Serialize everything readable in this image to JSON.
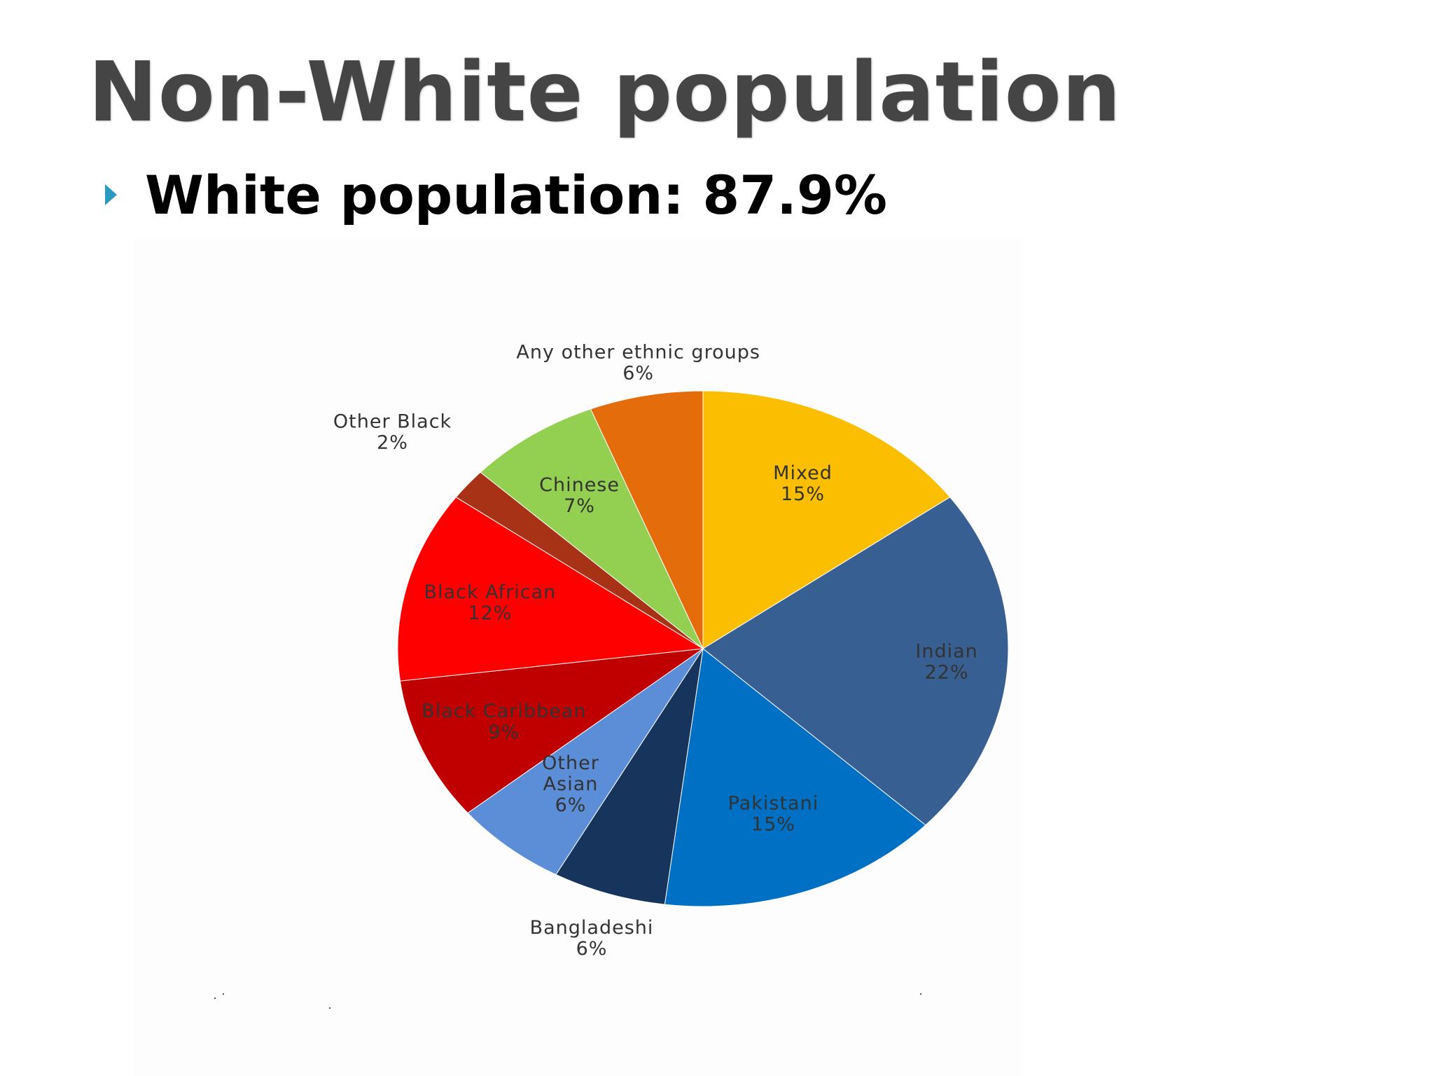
{
  "slide": {
    "title": "Non-White population",
    "bullet_text": "White population: 87.9%"
  },
  "chart_data": {
    "type": "pie",
    "title": "",
    "start_angle_deg": 0,
    "direction": "clockwise",
    "slices": [
      {
        "label": "Mixed",
        "value": 15,
        "value_label": "15%",
        "color": "#fbbe00",
        "label_color": "#333333"
      },
      {
        "label": "Indian",
        "value": 22,
        "value_label": "22%",
        "color": "#385f91",
        "label_color": "#333333"
      },
      {
        "label": "Pakistani",
        "value": 15,
        "value_label": "15%",
        "color": "#0070c4",
        "label_color": "#333333"
      },
      {
        "label": "Bangladeshi",
        "value": 6,
        "value_label": "6%",
        "color": "#17345c",
        "label_color": "#333333"
      },
      {
        "label": "Other Asian",
        "value": 6,
        "value_label": "6%",
        "color": "#5b8ed6",
        "label_color": "#333333"
      },
      {
        "label": "Black Caribbean",
        "value": 9,
        "value_label": "9%",
        "color": "#c00000",
        "label_color": "#333333"
      },
      {
        "label": "Black African",
        "value": 12,
        "value_label": "12%",
        "color": "#ff0000",
        "label_color": "#333333"
      },
      {
        "label": "Other Black",
        "value": 2,
        "value_label": "2%",
        "color": "#a73216",
        "label_color": "#333333"
      },
      {
        "label": "Chinese",
        "value": 7,
        "value_label": "7%",
        "color": "#93cf50",
        "label_color": "#333333"
      },
      {
        "label": "Any other ethnic groups",
        "value": 6,
        "value_label": "6%",
        "color": "#e46c0a",
        "label_color": "#333333"
      }
    ],
    "legend": "none",
    "data_labels": "category name and percentage"
  }
}
